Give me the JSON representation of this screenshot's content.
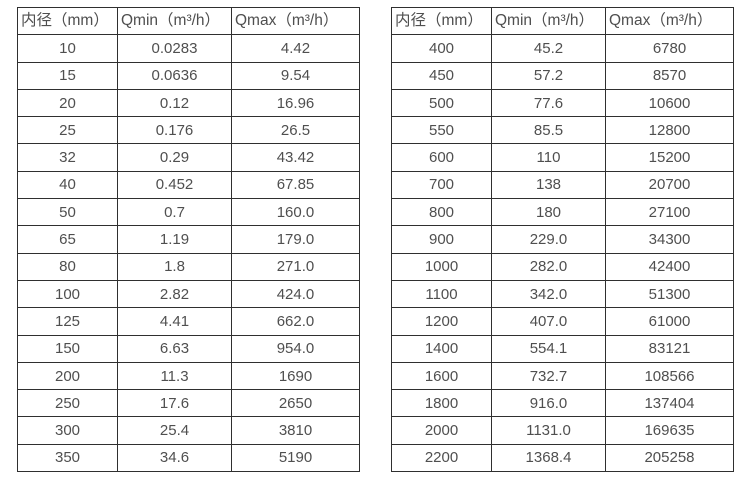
{
  "tables": [
    {
      "name": "flow-rate-table-small-diameters",
      "headers": [
        "内径（mm）",
        "Qmin（m³/h）",
        "Qmax（m³/h）"
      ],
      "rows": [
        [
          "10",
          "0.0283",
          "4.42"
        ],
        [
          "15",
          "0.0636",
          "9.54"
        ],
        [
          "20",
          "0.12",
          "16.96"
        ],
        [
          "25",
          "0.176",
          "26.5"
        ],
        [
          "32",
          "0.29",
          "43.42"
        ],
        [
          "40",
          "0.452",
          "67.85"
        ],
        [
          "50",
          "0.7",
          "160.0"
        ],
        [
          "65",
          "1.19",
          "179.0"
        ],
        [
          "80",
          "1.8",
          "271.0"
        ],
        [
          "100",
          "2.82",
          "424.0"
        ],
        [
          "125",
          "4.41",
          "662.0"
        ],
        [
          "150",
          "6.63",
          "954.0"
        ],
        [
          "200",
          "11.3",
          "1690"
        ],
        [
          "250",
          "17.6",
          "2650"
        ],
        [
          "300",
          "25.4",
          "3810"
        ],
        [
          "350",
          "34.6",
          "5190"
        ]
      ]
    },
    {
      "name": "flow-rate-table-large-diameters",
      "headers": [
        "内径（mm）",
        "Qmin（m³/h）",
        "Qmax（m³/h）"
      ],
      "rows": [
        [
          "400",
          "45.2",
          "6780"
        ],
        [
          "450",
          "57.2",
          "8570"
        ],
        [
          "500",
          "77.6",
          "10600"
        ],
        [
          "550",
          "85.5",
          "12800"
        ],
        [
          "600",
          "110",
          "15200"
        ],
        [
          "700",
          "138",
          "20700"
        ],
        [
          "800",
          "180",
          "27100"
        ],
        [
          "900",
          "229.0",
          "34300"
        ],
        [
          "1000",
          "282.0",
          "42400"
        ],
        [
          "1100",
          "342.0",
          "51300"
        ],
        [
          "1200",
          "407.0",
          "61000"
        ],
        [
          "1400",
          "554.1",
          "83121"
        ],
        [
          "1600",
          "732.7",
          "108566"
        ],
        [
          "1800",
          "916.0",
          "137404"
        ],
        [
          "2000",
          "1131.0",
          "169635"
        ],
        [
          "2200",
          "1368.4",
          "205258"
        ]
      ]
    }
  ],
  "colors": {
    "text": "#4f4f4f",
    "border": "#2f2f2f",
    "background": "#ffffff"
  }
}
